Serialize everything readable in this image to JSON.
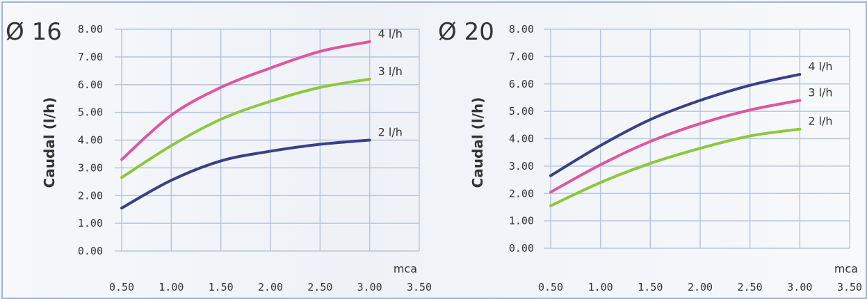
{
  "chart_data": [
    {
      "type": "line",
      "title": "Ø 16",
      "ylabel": "Caudal (l/h)",
      "xunit": "mca",
      "xlim": [
        0.5,
        3.5
      ],
      "ylim": [
        0,
        8
      ],
      "xticks": [
        "0.50",
        "1.00",
        "1.50",
        "2.00",
        "2.50",
        "3.00",
        "3.50"
      ],
      "yticks": [
        "0.00",
        "1.00",
        "2.00",
        "3.00",
        "4.00",
        "5.00",
        "6.00",
        "7.00",
        "8.00"
      ],
      "grid": true,
      "x": [
        0.5,
        1.0,
        1.5,
        2.0,
        2.5,
        3.0
      ],
      "series": [
        {
          "name": "4 l/h",
          "color": "#e0559f",
          "values": [
            3.3,
            4.9,
            5.9,
            6.6,
            7.2,
            7.55
          ]
        },
        {
          "name": "3 l/h",
          "color": "#8fc63f",
          "values": [
            2.65,
            3.8,
            4.75,
            5.4,
            5.9,
            6.2
          ]
        },
        {
          "name": "2 l/h",
          "color": "#3b3f86",
          "values": [
            1.55,
            2.55,
            3.25,
            3.6,
            3.85,
            4.0
          ]
        }
      ]
    },
    {
      "type": "line",
      "title": "Ø 20",
      "ylabel": "Caudal (l/h)",
      "xunit": "mca",
      "xlim": [
        0.5,
        3.5
      ],
      "ylim": [
        0,
        8
      ],
      "xticks": [
        "0.50",
        "1.00",
        "1.50",
        "2.00",
        "2.50",
        "3.00",
        "3.50"
      ],
      "yticks": [
        "0.00",
        "1.00",
        "2.00",
        "3.00",
        "4.00",
        "5.00",
        "6.00",
        "7.00",
        "8.00"
      ],
      "grid": true,
      "x": [
        0.5,
        1.0,
        1.5,
        2.0,
        2.5,
        3.0
      ],
      "series": [
        {
          "name": "4 l/h",
          "color": "#3b3f86",
          "values": [
            2.65,
            3.75,
            4.7,
            5.4,
            5.95,
            6.35
          ]
        },
        {
          "name": "3 l/h",
          "color": "#e0559f",
          "values": [
            2.05,
            3.05,
            3.9,
            4.55,
            5.05,
            5.4
          ]
        },
        {
          "name": "2 l/h",
          "color": "#8fc63f",
          "values": [
            1.55,
            2.4,
            3.1,
            3.65,
            4.1,
            4.35
          ]
        }
      ]
    }
  ]
}
